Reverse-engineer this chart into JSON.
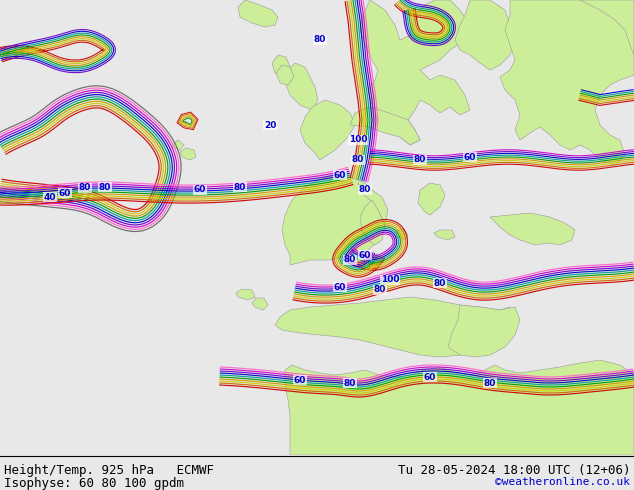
{
  "title_left_line1": "Height/Temp. 925 hPa   ECMWF",
  "title_left_line2": "Isophyse: 60 80 100 gpdm",
  "title_right_line1": "Tu 28-05-2024 18:00 UTC (12+06)",
  "title_right_line2": "©weatheronline.co.uk",
  "sea_color": "#e8e8e8",
  "land_color": "#ccee99",
  "border_color": "#999999",
  "bottom_bar_color": "#ffffff",
  "bottom_text_color": "#000000",
  "copyright_color": "#0000cc",
  "font_size_main": 9,
  "font_size_copy": 8,
  "contour_colors": [
    "#cc0000",
    "#cc6600",
    "#cccc00",
    "#cc9900",
    "#009900",
    "#009999",
    "#0000cc",
    "#6600cc",
    "#cc00cc",
    "#ff66cc",
    "#666666"
  ],
  "label_color": "#0000cc"
}
